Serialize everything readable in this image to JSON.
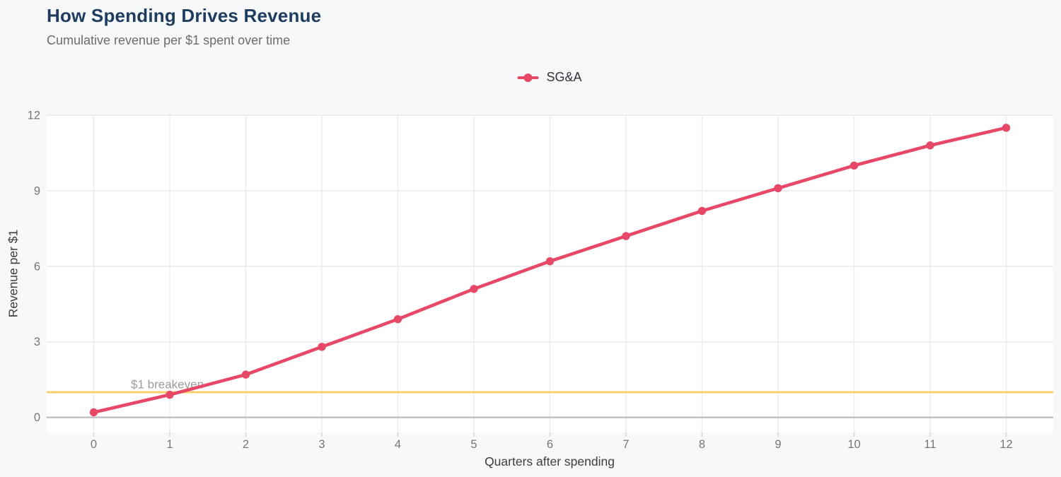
{
  "header": {
    "title": "How Spending Drives Revenue",
    "subtitle": "Cumulative revenue per $1 spent over time"
  },
  "colors": {
    "title_color": "#1d3c5f",
    "subtitle_color": "#6d6d6d",
    "axis_title_color": "#3d3d3d",
    "tick_label_color": "#74767b",
    "breakeven_label_color": "#9c9c9c",
    "page_bg": "#f7f8fa",
    "plot_bg": "#ffffff",
    "grid_color": "#e9e9e9",
    "v_grid_color": "#ededed",
    "zero_line_color": "#bcbcbc",
    "tick_mark_color": "#d8d8d8"
  },
  "chart_data": {
    "type": "line",
    "title": "How Spending Drives Revenue",
    "subtitle": "Cumulative revenue per $1 spent over time",
    "xlabel": "Quarters after spending",
    "ylabel": "Revenue per $1",
    "x": [
      0,
      1,
      2,
      3,
      4,
      5,
      6,
      7,
      8,
      9,
      10,
      11,
      12
    ],
    "series": [
      {
        "name": "SG&A",
        "color": "#e84868",
        "values": [
          0.2,
          0.9,
          1.7,
          2.8,
          3.9,
          5.1,
          6.2,
          7.2,
          8.2,
          9.1,
          10.0,
          10.8,
          11.5
        ]
      }
    ],
    "yticks": [
      0,
      3,
      6,
      9,
      12
    ],
    "ylim": [
      -0.6,
      12
    ],
    "grid": true,
    "legend_position": "top",
    "reference_line": {
      "value": 1,
      "label": "$1 breakeven",
      "color": "#f5cf69"
    }
  }
}
